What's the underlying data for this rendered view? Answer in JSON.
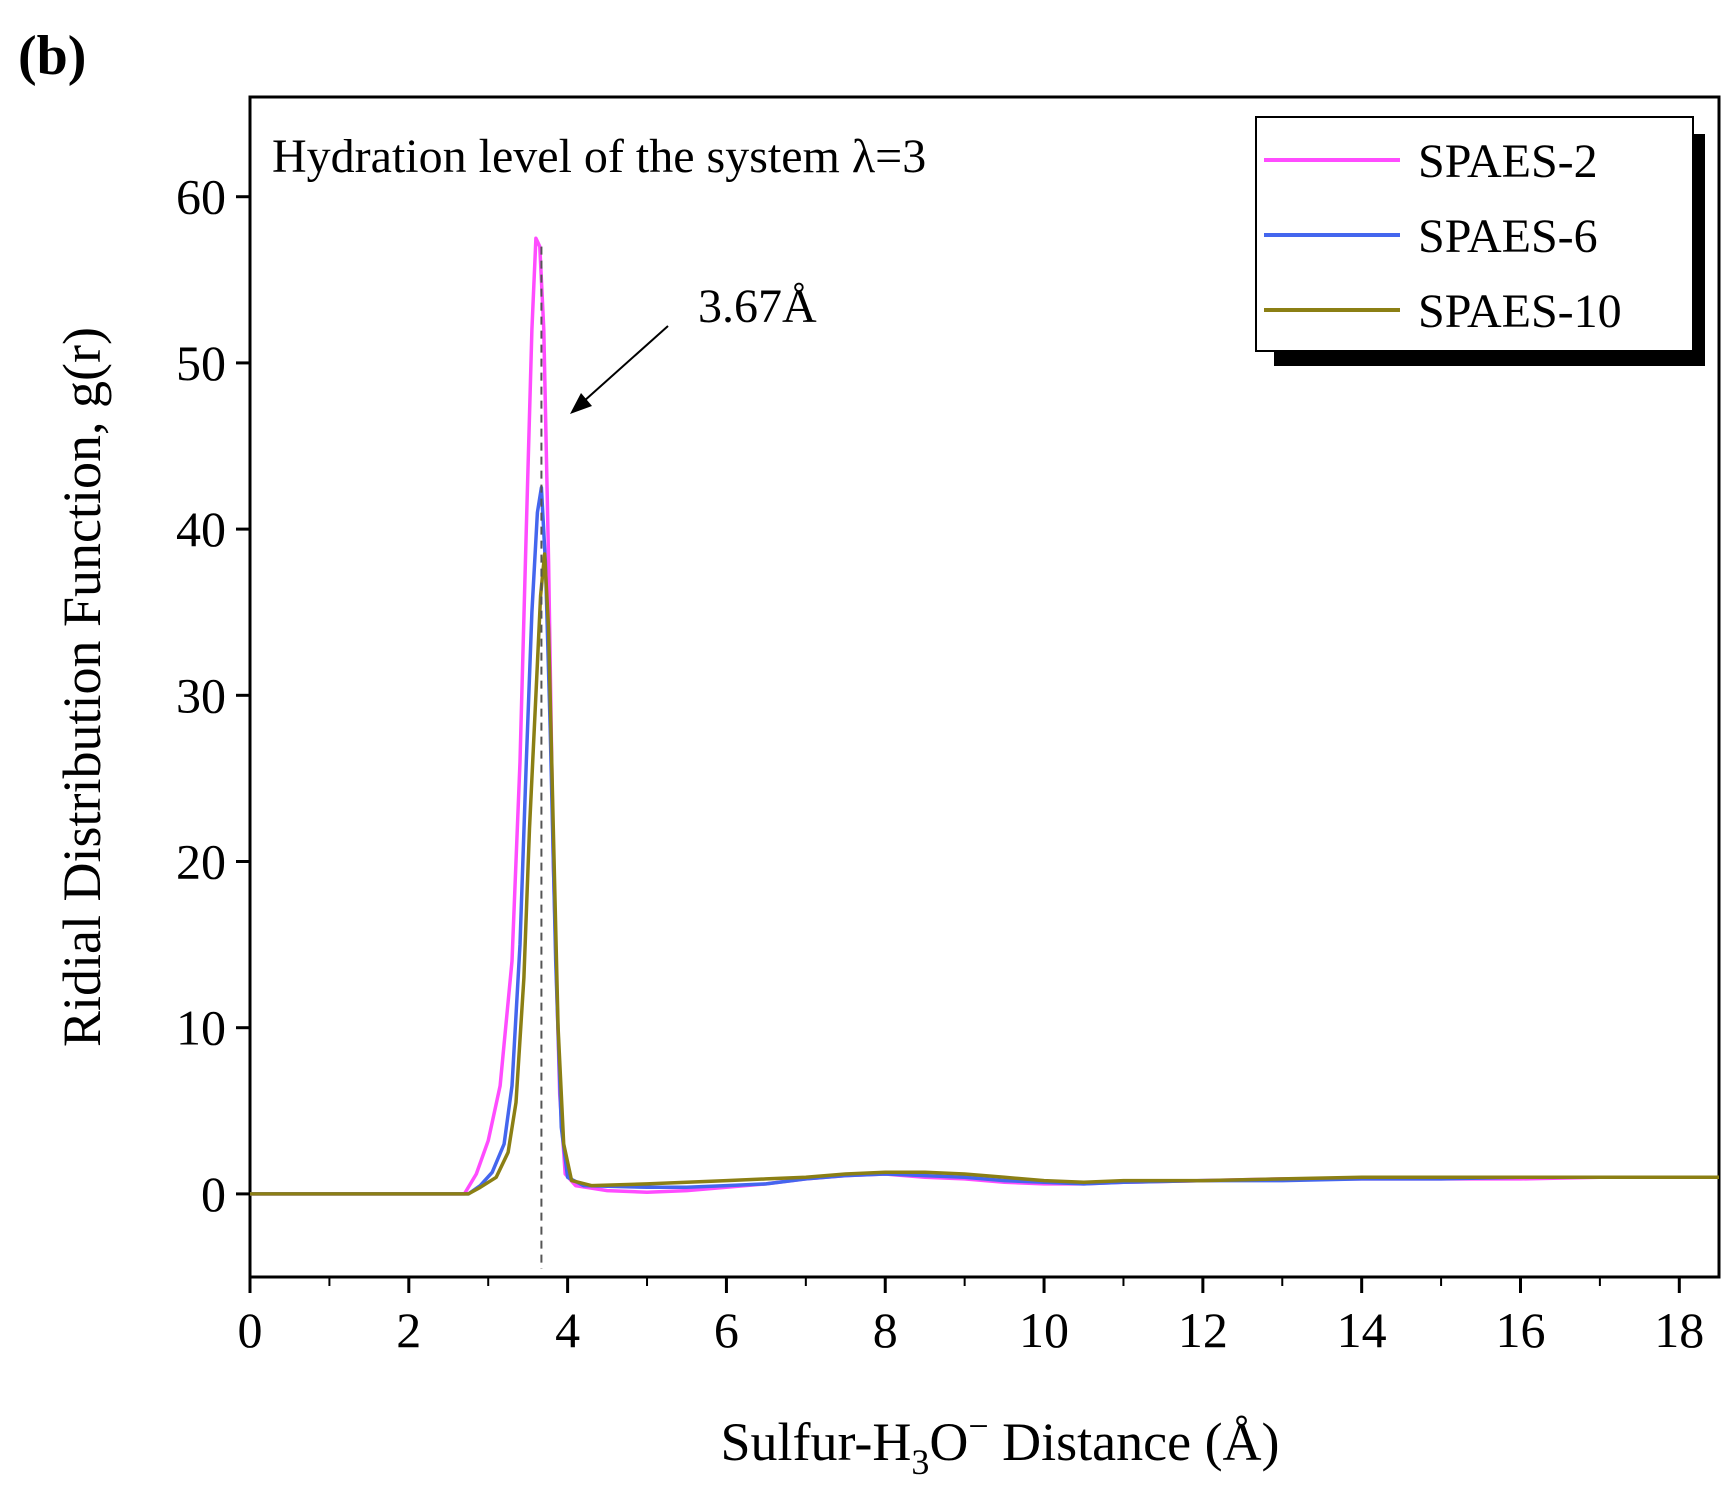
{
  "panel_label": "(b)",
  "chart_data": {
    "type": "line",
    "title": "",
    "annotation_text": "Hydration level of the system λ=3",
    "peak_label": "3.67Å",
    "peak_x": 3.67,
    "xlabel": {
      "prefix": "Sulfur-H",
      "sub": "3",
      "mid": "O",
      "sup": "−",
      "suffix": " Distance (Å)"
    },
    "ylabel": "Ridial Distribution Function, g(r)",
    "xlim": [
      0,
      18.5
    ],
    "ylim": [
      -5,
      66
    ],
    "xticks": [
      0,
      2,
      4,
      6,
      8,
      10,
      12,
      14,
      16,
      18
    ],
    "yticks": [
      0,
      10,
      20,
      30,
      40,
      50,
      60
    ],
    "legend_position": "top-right",
    "series": [
      {
        "name": "SPAES-2",
        "color": "#ff4cff",
        "points": [
          [
            0,
            0
          ],
          [
            2.7,
            0
          ],
          [
            2.85,
            1.2
          ],
          [
            3.0,
            3.2
          ],
          [
            3.15,
            6.5
          ],
          [
            3.3,
            14
          ],
          [
            3.4,
            26
          ],
          [
            3.48,
            40
          ],
          [
            3.55,
            52
          ],
          [
            3.6,
            57.5
          ],
          [
            3.65,
            57
          ],
          [
            3.7,
            52
          ],
          [
            3.76,
            38
          ],
          [
            3.82,
            20
          ],
          [
            3.9,
            6
          ],
          [
            3.97,
            1.2
          ],
          [
            4.1,
            0.5
          ],
          [
            4.5,
            0.2
          ],
          [
            5.0,
            0.1
          ],
          [
            5.5,
            0.2
          ],
          [
            6.0,
            0.4
          ],
          [
            6.5,
            0.6
          ],
          [
            7.0,
            0.9
          ],
          [
            7.5,
            1.1
          ],
          [
            8.0,
            1.2
          ],
          [
            8.5,
            1.0
          ],
          [
            9.0,
            0.9
          ],
          [
            9.5,
            0.7
          ],
          [
            10.0,
            0.6
          ],
          [
            10.5,
            0.6
          ],
          [
            11.0,
            0.7
          ],
          [
            12.0,
            0.8
          ],
          [
            13.0,
            0.9
          ],
          [
            14.0,
            0.9
          ],
          [
            15.0,
            0.9
          ],
          [
            16.0,
            0.9
          ],
          [
            17.0,
            1.0
          ],
          [
            18.5,
            1.0
          ]
        ]
      },
      {
        "name": "SPAES-6",
        "color": "#4466ee",
        "points": [
          [
            0,
            0
          ],
          [
            2.75,
            0
          ],
          [
            2.9,
            0.5
          ],
          [
            3.05,
            1.3
          ],
          [
            3.2,
            3
          ],
          [
            3.3,
            6.5
          ],
          [
            3.4,
            15
          ],
          [
            3.48,
            26
          ],
          [
            3.55,
            35
          ],
          [
            3.62,
            41
          ],
          [
            3.67,
            42.5
          ],
          [
            3.72,
            38
          ],
          [
            3.78,
            28
          ],
          [
            3.85,
            14
          ],
          [
            3.92,
            4
          ],
          [
            4.0,
            1
          ],
          [
            4.2,
            0.5
          ],
          [
            5.0,
            0.4
          ],
          [
            5.5,
            0.4
          ],
          [
            6.0,
            0.5
          ],
          [
            6.5,
            0.6
          ],
          [
            7.0,
            0.9
          ],
          [
            7.5,
            1.1
          ],
          [
            8.0,
            1.2
          ],
          [
            8.5,
            1.1
          ],
          [
            9.0,
            1.0
          ],
          [
            9.5,
            0.8
          ],
          [
            10.0,
            0.7
          ],
          [
            10.5,
            0.6
          ],
          [
            11.0,
            0.7
          ],
          [
            12.0,
            0.8
          ],
          [
            13.0,
            0.8
          ],
          [
            14.0,
            0.9
          ],
          [
            15.0,
            0.9
          ],
          [
            16.0,
            1.0
          ],
          [
            17.0,
            1.0
          ],
          [
            18.5,
            1.0
          ]
        ]
      },
      {
        "name": "SPAES-10",
        "color": "#8b7f14",
        "points": [
          [
            0,
            0
          ],
          [
            2.75,
            0
          ],
          [
            2.9,
            0.4
          ],
          [
            3.1,
            1.0
          ],
          [
            3.25,
            2.5
          ],
          [
            3.35,
            5.5
          ],
          [
            3.45,
            13
          ],
          [
            3.52,
            22
          ],
          [
            3.6,
            30
          ],
          [
            3.66,
            36
          ],
          [
            3.71,
            38.5
          ],
          [
            3.76,
            34
          ],
          [
            3.82,
            22
          ],
          [
            3.88,
            10
          ],
          [
            3.95,
            3
          ],
          [
            4.05,
            0.8
          ],
          [
            4.3,
            0.5
          ],
          [
            5.0,
            0.6
          ],
          [
            5.5,
            0.7
          ],
          [
            6.0,
            0.8
          ],
          [
            6.5,
            0.9
          ],
          [
            7.0,
            1.0
          ],
          [
            7.5,
            1.2
          ],
          [
            8.0,
            1.3
          ],
          [
            8.5,
            1.3
          ],
          [
            9.0,
            1.2
          ],
          [
            9.5,
            1.0
          ],
          [
            10.0,
            0.8
          ],
          [
            10.5,
            0.7
          ],
          [
            11.0,
            0.8
          ],
          [
            12.0,
            0.8
          ],
          [
            13.0,
            0.9
          ],
          [
            14.0,
            1.0
          ],
          [
            15.0,
            1.0
          ],
          [
            16.0,
            1.0
          ],
          [
            17.0,
            1.0
          ],
          [
            18.5,
            1.0
          ]
        ]
      }
    ]
  }
}
